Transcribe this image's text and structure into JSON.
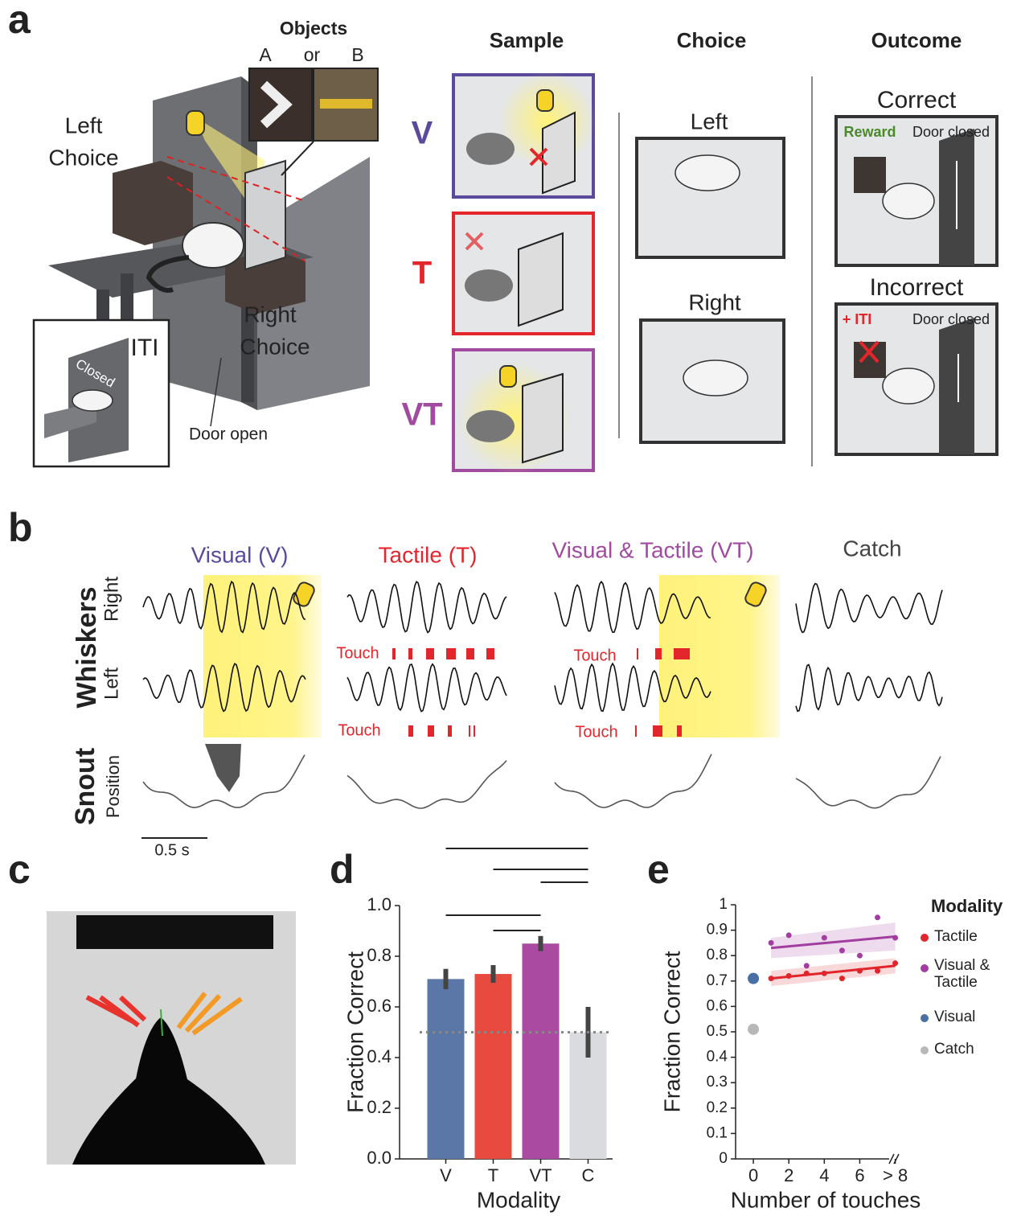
{
  "panel_labels": [
    "a",
    "b",
    "c",
    "d",
    "e"
  ],
  "panel_a": {
    "objects_title": "Objects",
    "object_a": "A",
    "or": "or",
    "object_b": "B",
    "left_choice": [
      "Left",
      "Choice"
    ],
    "right_choice": [
      "Right",
      "Choice"
    ],
    "iti": "ITI",
    "closed": "Closed",
    "door_open": "Door open",
    "columns": [
      "Sample",
      "Choice",
      "Outcome"
    ],
    "rows": [
      "V",
      "T",
      "VT"
    ],
    "choice_left": "Left",
    "choice_right": "Right",
    "correct": "Correct",
    "incorrect": "Incorrect",
    "reward": "Reward",
    "door_closed_1": "Door closed",
    "plus_iti": "+ ITI",
    "door_closed_2": "Door closed"
  },
  "panel_b": {
    "titles": [
      "Visual (V)",
      "Tactile (T)",
      "Visual & Tactile (VT)",
      "Catch"
    ],
    "whiskers": "Whiskers",
    "right": "Right",
    "left": "Left",
    "snout": "Snout",
    "position": "Position",
    "touch": [
      "Touch",
      "Touch",
      "Touch",
      "Touch"
    ],
    "scale": "0.5 s"
  },
  "chart_data": [
    {
      "type": "bar",
      "x_label": "Modality",
      "y_label": "Fraction Correct",
      "categories": [
        "V",
        "T",
        "VT",
        "C"
      ],
      "values": [
        0.71,
        0.73,
        0.85,
        0.5
      ],
      "errors": [
        0.04,
        0.035,
        0.03,
        0.1
      ],
      "colors": [
        "#5a77a8",
        "#e84a40",
        "#aa4aa0",
        "#d9dbde"
      ],
      "ylim": [
        0,
        1
      ],
      "yticks": [
        {
          "value": 0,
          "label": "0.0"
        },
        {
          "value": 0.2,
          "label": "0.2"
        },
        {
          "value": 0.4,
          "label": "0.4"
        },
        {
          "value": 0.6,
          "label": "0.6"
        },
        {
          "value": 0.8,
          "label": "0.8"
        },
        {
          "value": 1,
          "label": "1.0"
        }
      ],
      "reference_line": 0.5
    },
    {
      "type": "scatter",
      "x_label": "Number of touches",
      "y_label": "Fraction Correct",
      "legend_title": "Modality",
      "legend_position": "right",
      "xlim": [
        -1,
        8.2
      ],
      "ylim": [
        0,
        1
      ],
      "xticks": [
        0,
        2,
        4,
        6,
        {
          "value": 8,
          "label": "> 8"
        }
      ],
      "yticks": [
        0,
        0.1,
        0.2,
        0.3,
        0.4,
        0.5,
        0.6,
        0.7,
        0.8,
        0.9,
        1
      ],
      "series": [
        {
          "name": "Tactile",
          "color": "#e0262c",
          "x": [
            1,
            2,
            3,
            4,
            5,
            6,
            7,
            8
          ],
          "values": [
            0.71,
            0.72,
            0.73,
            0.73,
            0.71,
            0.74,
            0.74,
            0.77
          ],
          "fit": {
            "x": [
              1,
              8
            ],
            "y": [
              0.71,
              0.76
            ],
            "lower": [
              0.68,
              0.73
            ],
            "upper": [
              0.74,
              0.79
            ]
          }
        },
        {
          "name": "Visual & Tactile",
          "color": "#a23ea0",
          "x": [
            1,
            2,
            3,
            4,
            5,
            6,
            7,
            8
          ],
          "values": [
            0.85,
            0.88,
            0.76,
            0.87,
            0.82,
            0.8,
            0.95,
            0.87
          ],
          "fit": {
            "x": [
              1,
              8
            ],
            "y": [
              0.83,
              0.875
            ],
            "lower": [
              0.79,
              0.82
            ],
            "upper": [
              0.87,
              0.93
            ]
          }
        },
        {
          "name": "Visual",
          "color": "#4a6fa5",
          "x": [
            0
          ],
          "values": [
            0.71
          ]
        },
        {
          "name": "Catch",
          "color": "#b8b8b8",
          "x": [
            0
          ],
          "values": [
            0.51
          ]
        }
      ]
    }
  ]
}
